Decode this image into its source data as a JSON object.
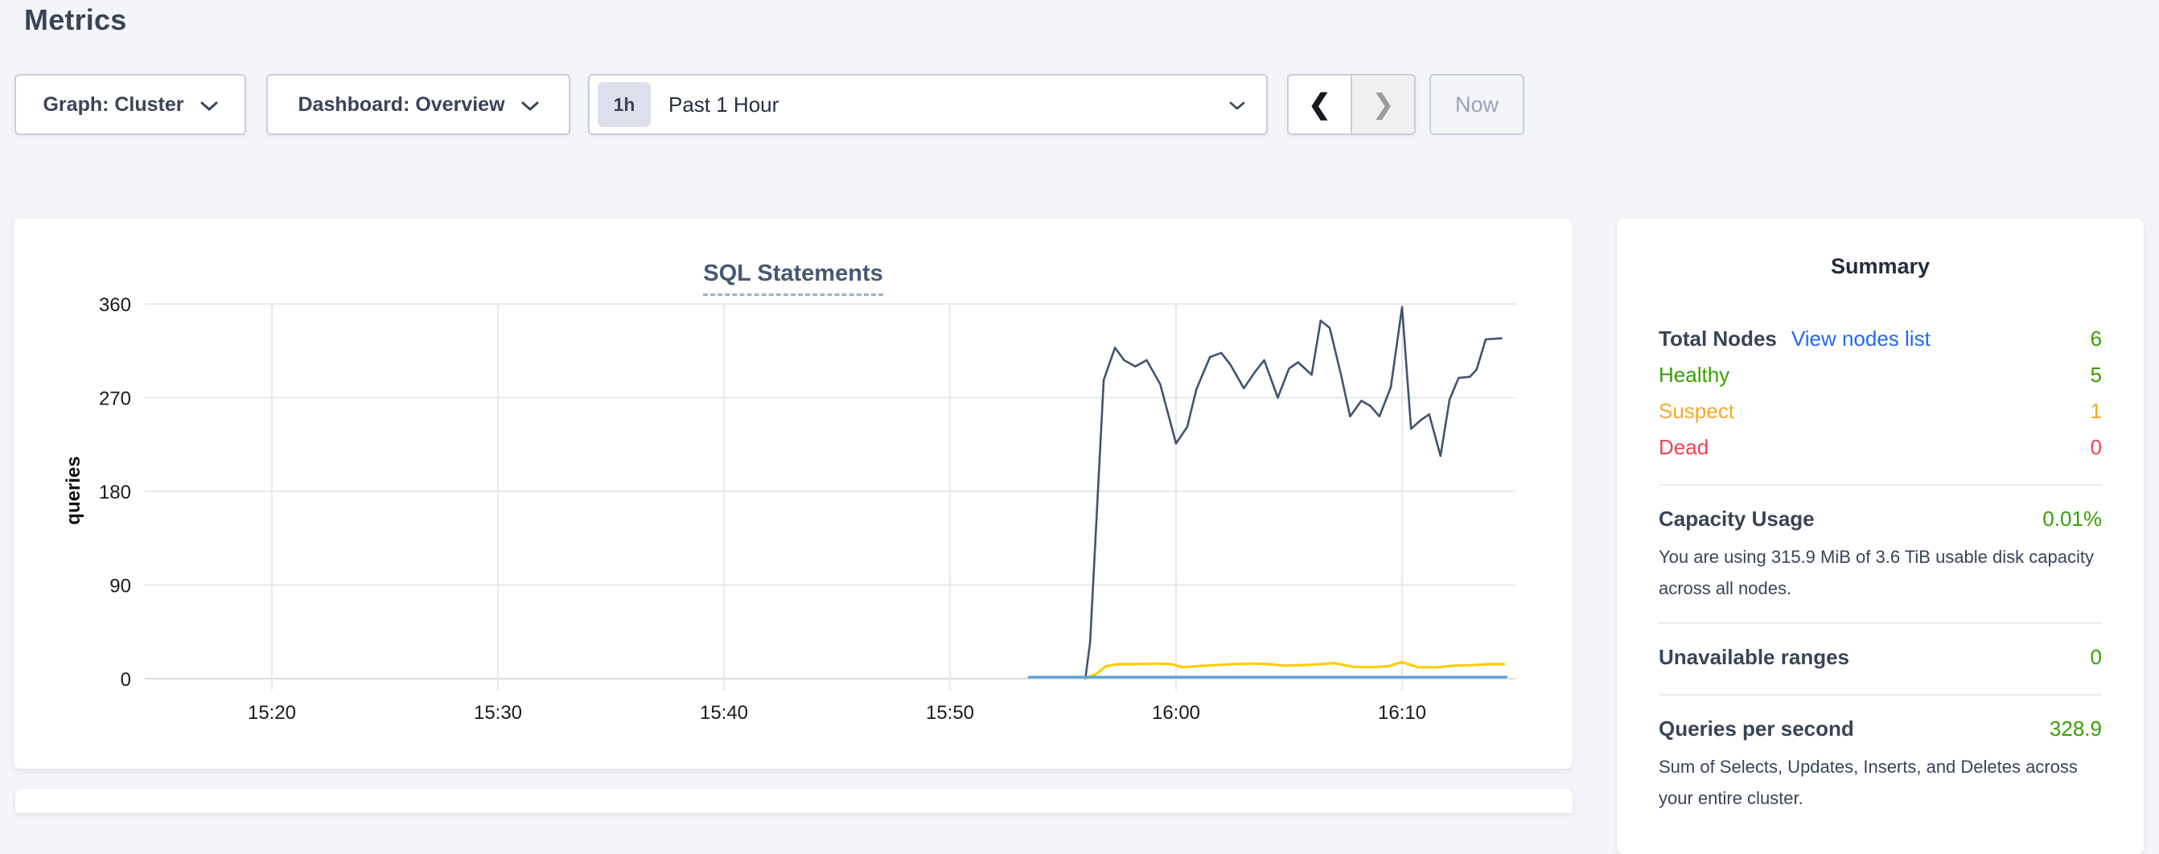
{
  "page": {
    "title": "Metrics",
    "background": "#f4f5f9"
  },
  "controls": {
    "graph_dropdown": {
      "label": "Graph: Cluster"
    },
    "dashboard_dropdown": {
      "label": "Dashboard: Overview"
    },
    "time_selector": {
      "badge": "1h",
      "label": "Past 1 Hour"
    },
    "nav": {
      "prev_icon": "❮",
      "next_icon": "❯"
    },
    "now_button": {
      "label": "Now"
    }
  },
  "chart_data": {
    "type": "line",
    "title": "SQL Statements",
    "ylabel": "queries",
    "ylim": [
      0,
      360
    ],
    "y_ticks": [
      0,
      90,
      180,
      270,
      360
    ],
    "x_ticks": [
      "15:20",
      "15:30",
      "15:40",
      "15:50",
      "16:00",
      "16:10"
    ],
    "x_tick_minutes_after_1500": [
      20,
      30,
      40,
      50,
      60,
      70
    ],
    "x_domain_minutes_after_1500": [
      14.6,
      75.5
    ],
    "grid": true,
    "legend": "none",
    "series": [
      {
        "name": "dark-blue-line",
        "color": "#43536F",
        "width": 2.6,
        "points": [
          [
            56.0,
            2
          ],
          [
            56.2,
            35
          ],
          [
            56.8,
            287
          ],
          [
            57.3,
            318
          ],
          [
            57.7,
            306
          ],
          [
            58.2,
            300
          ],
          [
            58.7,
            306
          ],
          [
            59.3,
            283
          ],
          [
            60.0,
            226
          ],
          [
            60.5,
            242
          ],
          [
            60.9,
            278
          ],
          [
            61.5,
            309
          ],
          [
            62.0,
            313
          ],
          [
            62.4,
            302
          ],
          [
            63.0,
            279
          ],
          [
            63.5,
            295
          ],
          [
            63.9,
            306
          ],
          [
            64.5,
            270
          ],
          [
            65.0,
            298
          ],
          [
            65.4,
            304
          ],
          [
            66.0,
            292
          ],
          [
            66.4,
            344
          ],
          [
            66.8,
            337
          ],
          [
            67.3,
            292
          ],
          [
            67.7,
            252
          ],
          [
            68.2,
            267
          ],
          [
            68.6,
            262
          ],
          [
            69.0,
            252
          ],
          [
            69.5,
            280
          ],
          [
            70.0,
            357
          ],
          [
            70.4,
            240
          ],
          [
            70.8,
            248
          ],
          [
            71.2,
            254
          ],
          [
            71.7,
            214
          ],
          [
            72.1,
            268
          ],
          [
            72.5,
            289
          ],
          [
            73.0,
            290
          ],
          [
            73.3,
            297
          ],
          [
            73.7,
            326
          ],
          [
            74.4,
            327
          ]
        ]
      },
      {
        "name": "yellow-line",
        "color": "#FFCD00",
        "width": 3.2,
        "points": [
          [
            56.0,
            0
          ],
          [
            56.5,
            5
          ],
          [
            56.9,
            12
          ],
          [
            57.4,
            14
          ],
          [
            58.2,
            14
          ],
          [
            59.0,
            14.5
          ],
          [
            59.8,
            14
          ],
          [
            60.3,
            11
          ],
          [
            60.9,
            12
          ],
          [
            61.7,
            13
          ],
          [
            62.5,
            14
          ],
          [
            63.3,
            14.5
          ],
          [
            64.1,
            14
          ],
          [
            64.8,
            12.5
          ],
          [
            65.6,
            13
          ],
          [
            66.4,
            14
          ],
          [
            67.0,
            15
          ],
          [
            67.8,
            11.5
          ],
          [
            68.6,
            11
          ],
          [
            69.4,
            12
          ],
          [
            70.0,
            16
          ],
          [
            70.7,
            11
          ],
          [
            71.5,
            11
          ],
          [
            72.3,
            12.5
          ],
          [
            73.1,
            13
          ],
          [
            73.9,
            14
          ],
          [
            74.5,
            14
          ]
        ]
      },
      {
        "name": "light-blue-line",
        "color": "#5FA3D8",
        "width": 3.4,
        "points": [
          [
            53.5,
            1.5
          ],
          [
            58,
            1.5
          ],
          [
            62,
            1.5
          ],
          [
            66,
            1.5
          ],
          [
            70,
            1.5
          ],
          [
            74.6,
            1.5
          ]
        ]
      }
    ]
  },
  "summary": {
    "title": "Summary",
    "total_nodes": {
      "label": "Total Nodes",
      "link": "View nodes list",
      "value": "6"
    },
    "node_rows": [
      {
        "label": "Healthy",
        "value": "5",
        "color": "green"
      },
      {
        "label": "Suspect",
        "value": "1",
        "color": "orange"
      },
      {
        "label": "Dead",
        "value": "0",
        "color": "red"
      }
    ],
    "capacity": {
      "label": "Capacity Usage",
      "value": "0.01%",
      "description": "You are using 315.9 MiB of 3.6 TiB usable disk capacity across all nodes."
    },
    "unavailable": {
      "label": "Unavailable ranges",
      "value": "0"
    },
    "qps": {
      "label": "Queries per second",
      "value": "328.9",
      "description": "Sum of Selects, Updates, Inserts, and Deletes across your entire cluster."
    }
  },
  "colors": {
    "green": "#37A000",
    "orange": "#F8A82B",
    "red": "#F04352",
    "link": "#2468F2",
    "heading": "#242D3C",
    "label": "#394455",
    "chart_title": "#475872"
  }
}
